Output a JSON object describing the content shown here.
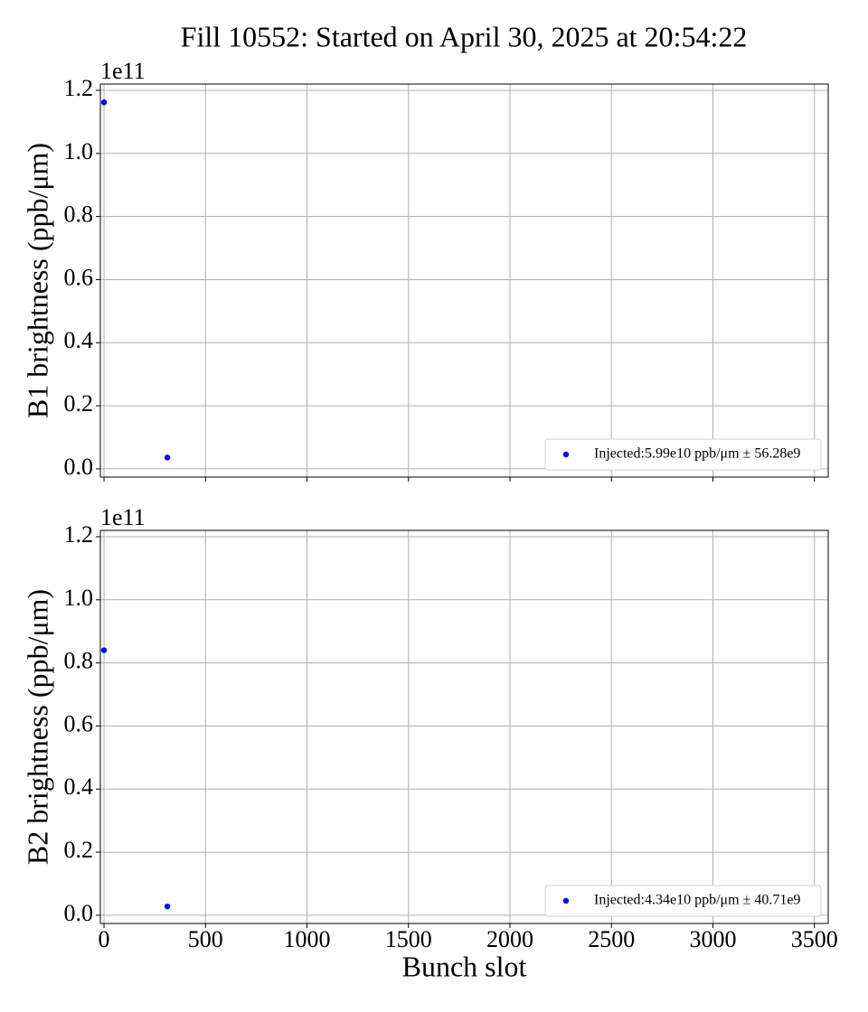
{
  "title": "Fill 10552: Started on April 30, 2025 at 20:54:22",
  "chart_data": [
    {
      "type": "scatter",
      "ylabel": "B1 brightness (ppb/μm)",
      "y_offset_label": "1e11",
      "series": [
        {
          "name": "Injected:5.99e10 ppb/μm ± 56.28e9",
          "color": "#0000ff",
          "x": [
            0,
            312
          ],
          "values": [
            1.162,
            0.036
          ]
        }
      ],
      "xlim": [
        -18,
        3568
      ],
      "xticks": [
        0,
        500,
        1000,
        1500,
        2000,
        2500,
        3000,
        3500
      ],
      "ylim": [
        -0.026,
        1.22
      ],
      "yticks": [
        {
          "value": 0,
          "label": "0.0"
        },
        {
          "value": 0.2,
          "label": "0.2"
        },
        {
          "value": 0.4,
          "label": "0.4"
        },
        {
          "value": 0.6,
          "label": "0.6"
        },
        {
          "value": 0.8,
          "label": "0.8"
        },
        {
          "value": 1,
          "label": "1.0"
        },
        {
          "value": 1.2,
          "label": "1.2"
        }
      ],
      "grid": true,
      "legend": "lower right"
    },
    {
      "type": "scatter",
      "ylabel": "B2 brightness (ppb/μm)",
      "xlabel": "Bunch slot",
      "y_offset_label": "1e11",
      "series": [
        {
          "name": "Injected:4.34e10 ppb/μm ± 40.71e9",
          "color": "#0000ff",
          "x": [
            0,
            312
          ],
          "values": [
            0.84,
            0.028
          ]
        }
      ],
      "xlim": [
        -18,
        3568
      ],
      "xticks": [
        0,
        500,
        1000,
        1500,
        2000,
        2500,
        3000,
        3500
      ],
      "ylim": [
        -0.026,
        1.22
      ],
      "yticks": [
        {
          "value": 0,
          "label": "0.0"
        },
        {
          "value": 0.2,
          "label": "0.2"
        },
        {
          "value": 0.4,
          "label": "0.4"
        },
        {
          "value": 0.6,
          "label": "0.6"
        },
        {
          "value": 0.8,
          "label": "0.8"
        },
        {
          "value": 1,
          "label": "1.0"
        },
        {
          "value": 1.2,
          "label": "1.2"
        }
      ],
      "grid": true,
      "legend": "lower right"
    }
  ]
}
